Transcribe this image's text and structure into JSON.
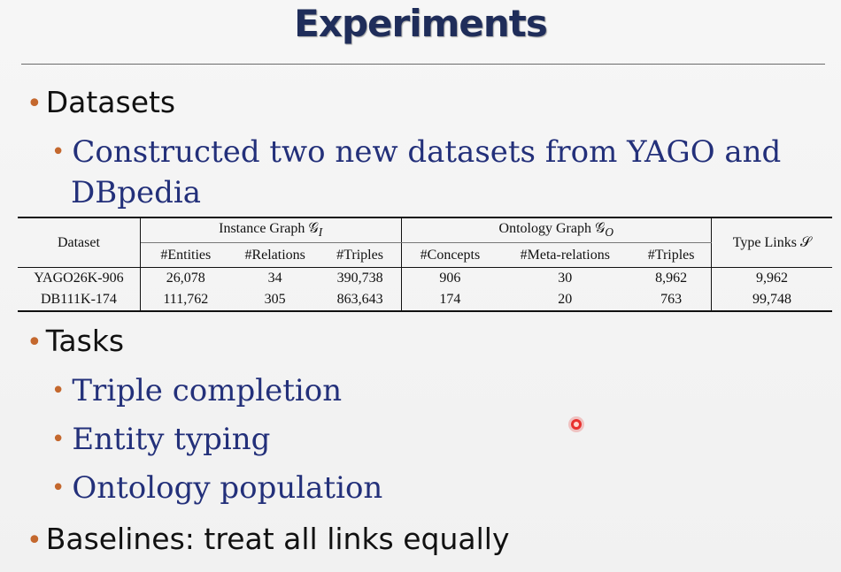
{
  "slide": {
    "title": "Experiments",
    "bullets": {
      "datasets": "Datasets",
      "datasets_sub_line1": "Constructed two new datasets from YAGO and",
      "datasets_sub_line2": "DBpedia",
      "tasks": "Tasks",
      "task_items": [
        "Triple completion",
        "Entity typing",
        "Ontology population"
      ],
      "baselines": "Baselines: treat all links equally"
    },
    "bullet_glyph": "•"
  },
  "table": {
    "col_dataset": "Dataset",
    "group_instance": "Instance Graph 𝒢",
    "group_instance_sub": "I",
    "group_ontology": "Ontology Graph 𝒢",
    "group_ontology_sub": "O",
    "col_type_links": "Type Links 𝒮",
    "sub_headers": [
      "#Entities",
      "#Relations",
      "#Triples",
      "#Concepts",
      "#Meta-relations",
      "#Triples"
    ],
    "rows": [
      {
        "dataset": "YAGO26K-906",
        "entities": "26,078",
        "relations": "34",
        "triples": "390,738",
        "concepts": "906",
        "meta_relations": "30",
        "onto_triples": "8,962",
        "type_links": "9,962"
      },
      {
        "dataset": "DB111K-174",
        "entities": "111,762",
        "relations": "305",
        "triples": "863,643",
        "concepts": "174",
        "meta_relations": "20",
        "onto_triples": "763",
        "type_links": "99,748"
      }
    ]
  },
  "colors": {
    "title": "#1f2d5a",
    "bullet_dot": "#c4682e",
    "sub_bullet_text": "#23307a",
    "pointer": "#e8322f"
  }
}
